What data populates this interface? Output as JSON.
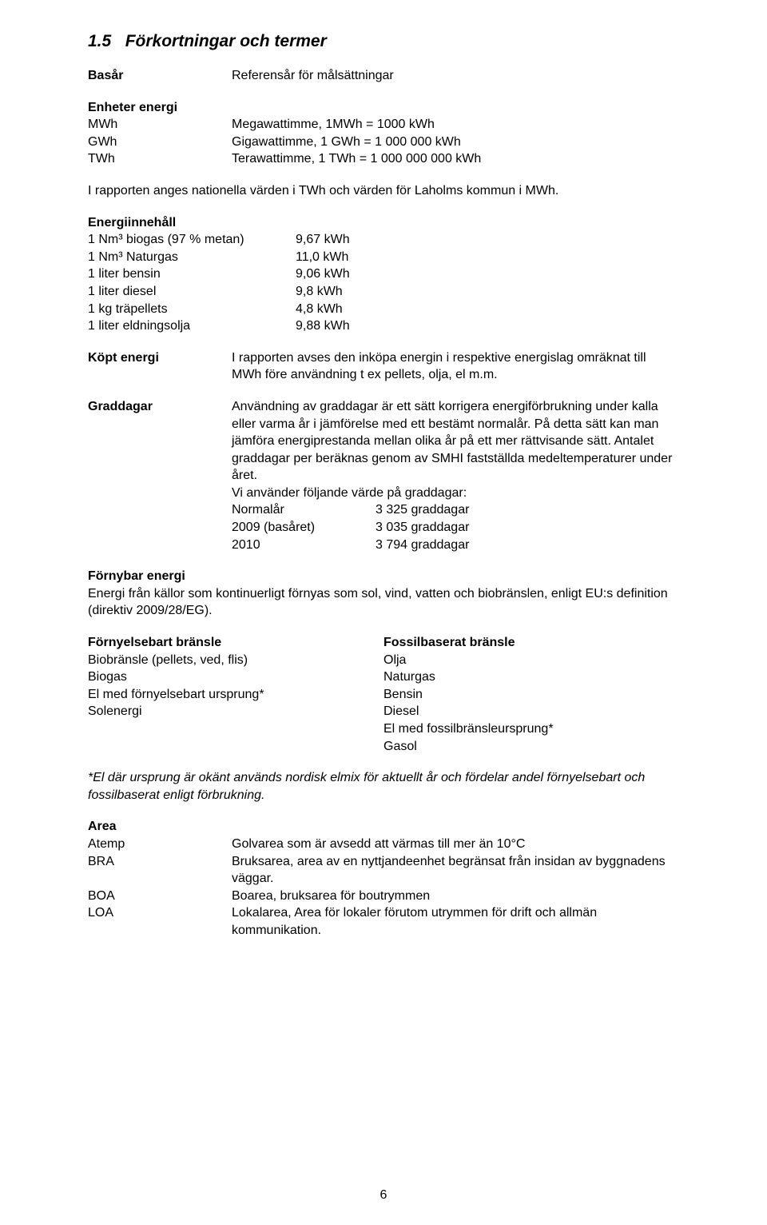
{
  "colors": {
    "background": "#ffffff",
    "text": "#000000"
  },
  "typography": {
    "body_font": "Arial",
    "body_size_pt": 12,
    "heading_size_pt": 16,
    "heading_style": "bold italic"
  },
  "section": {
    "number": "1.5",
    "title": "Förkortningar och termer"
  },
  "basar": {
    "label": "Basår",
    "value": "Referensår för målsättningar"
  },
  "enheter": {
    "heading": "Enheter energi",
    "rows": [
      {
        "label": "MWh",
        "value": "Megawattimme, 1MWh = 1000 kWh"
      },
      {
        "label": "GWh",
        "value": "Gigawattimme, 1 GWh = 1 000 000 kWh"
      },
      {
        "label": "TWh",
        "value": "Terawattimme, 1 TWh = 1 000 000 000 kWh"
      }
    ]
  },
  "rapport_note": "I rapporten anges nationella värden i TWh och värden för Laholms kommun i MWh.",
  "energiinnehall": {
    "heading": "Energiinnehåll",
    "rows": [
      {
        "label": "1 Nm³ biogas (97 % metan)",
        "value": "9,67 kWh"
      },
      {
        "label": "1 Nm³ Naturgas",
        "value": "11,0 kWh"
      },
      {
        "label": "1 liter bensin",
        "value": "9,06 kWh"
      },
      {
        "label": "1 liter diesel",
        "value": "9,8 kWh"
      },
      {
        "label": "1 kg träpellets",
        "value": "4,8 kWh"
      },
      {
        "label": "1 liter eldningsolja",
        "value": "9,88 kWh"
      }
    ]
  },
  "kopt_energi": {
    "label": "Köpt energi",
    "text": "I rapporten avses den inköpa energin i respektive energislag omräknat till MWh före användning t ex pellets, olja, el m.m."
  },
  "graddagar": {
    "label": "Graddagar",
    "text": "Användning av graddagar är ett sätt korrigera energiförbrukning under kalla eller varma år i jämförelse med ett bestämt normalår. På detta sätt kan man jämföra energiprestanda mellan olika år på ett mer rättvisande sätt. Antalet graddagar per beräknas genom av SMHI fastställda medeltemperaturer under året.",
    "intro2": "Vi använder följande värde på graddagar:",
    "rows": [
      {
        "label": "Normalår",
        "value": "3 325 graddagar"
      },
      {
        "label": "2009 (basåret)",
        "value": "3 035 graddagar"
      },
      {
        "label": "2010",
        "value": "3 794 graddagar"
      }
    ]
  },
  "fornybar": {
    "heading": "Förnybar energi",
    "text": "Energi från källor som kontinuerligt förnyas som sol, vind, vatten och biobränslen, enligt EU:s definition (direktiv 2009/28/EG)."
  },
  "bransle": {
    "left_heading": "Förnyelsebart bränsle",
    "right_heading": "Fossilbaserat bränsle",
    "left": [
      "Biobränsle (pellets, ved, flis)",
      "Biogas",
      "El med förnyelsebart ursprung*",
      "Solenergi"
    ],
    "right": [
      "Olja",
      "Naturgas",
      "Bensin",
      "Diesel",
      "El med fossilbränsleursprung*",
      "Gasol"
    ]
  },
  "el_note": "*El där ursprung är okänt används nordisk elmix för aktuellt år och fördelar andel förnyelsebart och fossilbaserat enligt förbrukning.",
  "area": {
    "heading": "Area",
    "rows": [
      {
        "label": "Atemp",
        "value": "Golvarea som är avsedd att värmas till mer än 10°C"
      },
      {
        "label": "BRA",
        "value": "Bruksarea, area av en nyttjandeenhet begränsat från insidan av byggnadens väggar."
      },
      {
        "label": "BOA",
        "value": "Boarea, bruksarea för boutrymmen"
      },
      {
        "label": "LOA",
        "value": "Lokalarea, Area för lokaler förutom utrymmen för drift och allmän kommunikation."
      }
    ]
  },
  "page_number": "6"
}
